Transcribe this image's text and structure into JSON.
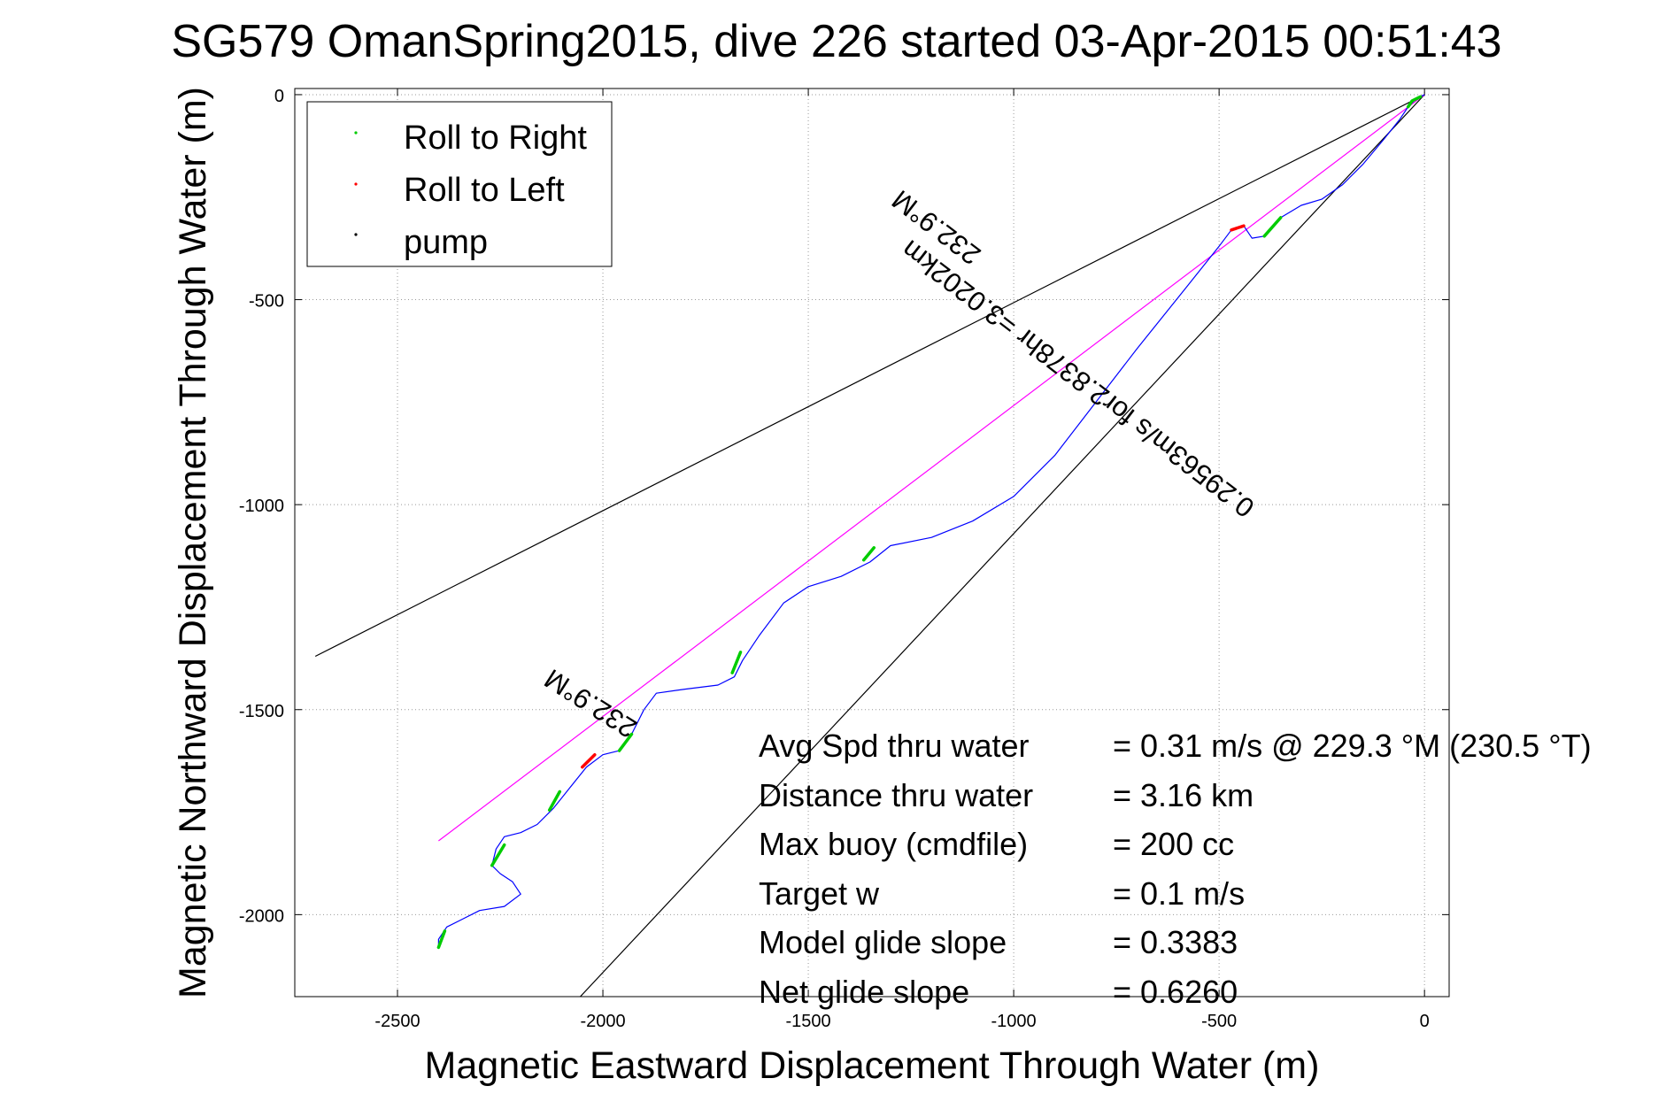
{
  "chart_data": {
    "type": "line",
    "title": "SG579 OmanSpring2015, dive 226 started 03-Apr-2015 00:51:43",
    "xlabel": "Magnetic Eastward Displacement Through Water (m)",
    "ylabel": "Magnetic Northward Displacement Through Water (m)",
    "xlim": [
      -2750,
      60
    ],
    "ylim": [
      -2200,
      15
    ],
    "xticks": [
      -2500,
      -2000,
      -1500,
      -1000,
      -500,
      0
    ],
    "yticks": [
      0,
      -500,
      -1000,
      -1500,
      -2000
    ],
    "grid": true,
    "legend_position": "top-left",
    "legend": [
      {
        "label": "Roll to Right",
        "color": "#00cc00"
      },
      {
        "label": "Roll to Left",
        "color": "#ff0000"
      },
      {
        "label": "pump",
        "color": "#000000"
      }
    ],
    "annotations": [
      {
        "text": "232.9°M",
        "x": -1175,
        "y": -306,
        "angle_deg": 217.5
      },
      {
        "text": "0.29563m/s for2.8378hr =3.0202km",
        "x": -830,
        "y": -675,
        "angle_deg": 217.5
      },
      {
        "text": "232.9°M",
        "x": -2018,
        "y": -1466,
        "angle_deg": 212.5
      }
    ],
    "series": [
      {
        "role": "track",
        "color": "#0000ff",
        "x": [
          0,
          -20,
          -40,
          -60,
          -100,
          -150,
          -200,
          -250,
          -300,
          -350,
          -390,
          -420,
          -440,
          -470,
          -500,
          -580,
          -700,
          -800,
          -900,
          -1000,
          -1100,
          -1200,
          -1300,
          -1350,
          -1420,
          -1500,
          -1560,
          -1620,
          -1660,
          -1680,
          -1720,
          -1800,
          -1870,
          -1900,
          -1930,
          -1960,
          -2000,
          -2040,
          -2080,
          -2120,
          -2160,
          -2200,
          -2240,
          -2260,
          -2270,
          -2250,
          -2220,
          -2200,
          -2240,
          -2300,
          -2340,
          -2380,
          -2400,
          -2400
        ],
        "y": [
          0,
          -10,
          -30,
          -60,
          -110,
          -170,
          -220,
          -255,
          -270,
          -300,
          -345,
          -350,
          -320,
          -330,
          -370,
          -470,
          -620,
          -750,
          -880,
          -980,
          -1040,
          -1080,
          -1100,
          -1140,
          -1175,
          -1200,
          -1240,
          -1320,
          -1380,
          -1420,
          -1440,
          -1450,
          -1460,
          -1500,
          -1560,
          -1600,
          -1610,
          -1640,
          -1690,
          -1740,
          -1780,
          -1800,
          -1810,
          -1840,
          -1880,
          -1900,
          -1920,
          -1950,
          -1980,
          -1990,
          -2010,
          -2030,
          -2060,
          -2080
        ]
      },
      {
        "role": "rhumb-line",
        "color": "#ff00ff",
        "x": [
          0,
          -2400
        ],
        "y": [
          0,
          -1820
        ]
      },
      {
        "role": "cone-upper",
        "color": "#000000",
        "x": [
          0,
          -2700
        ],
        "y": [
          0,
          -1370
        ]
      },
      {
        "role": "cone-lower",
        "color": "#000000",
        "x": [
          0,
          -2055
        ],
        "y": [
          0,
          -2200
        ]
      },
      {
        "role": "roll-to-right",
        "color": "#00cc00",
        "segments": [
          {
            "x": [
              -10,
              -30,
              -40
            ],
            "y": [
              -5,
              -15,
              -30
            ]
          },
          {
            "x": [
              -350,
              -390
            ],
            "y": [
              -300,
              -345
            ]
          },
          {
            "x": [
              -1340,
              -1365
            ],
            "y": [
              -1105,
              -1135
            ]
          },
          {
            "x": [
              -1665,
              -1685
            ],
            "y": [
              -1360,
              -1410
            ]
          },
          {
            "x": [
              -1930,
              -1960
            ],
            "y": [
              -1560,
              -1600
            ]
          },
          {
            "x": [
              -2105,
              -2130
            ],
            "y": [
              -1700,
              -1745
            ]
          },
          {
            "x": [
              -2240,
              -2270
            ],
            "y": [
              -1830,
              -1880
            ]
          },
          {
            "x": [
              -2385,
              -2400
            ],
            "y": [
              -2040,
              -2080
            ]
          }
        ]
      },
      {
        "role": "roll-to-left",
        "color": "#ff0000",
        "segments": [
          {
            "x": [
              -440,
              -470
            ],
            "y": [
              -320,
              -330
            ]
          },
          {
            "x": [
              -2020,
              -2050
            ],
            "y": [
              -1610,
              -1640
            ]
          }
        ]
      }
    ],
    "stats_panel": [
      {
        "label": "Avg Spd thru water",
        "value": "=  0.31 m/s @ 229.3 °M (230.5 °T)"
      },
      {
        "label": "Distance thru water",
        "value": "=  3.16 km"
      },
      {
        "label": "Max buoy (cmdfile)",
        "value": "= 200 cc"
      },
      {
        "label": "Target w",
        "value": "= 0.1 m/s"
      },
      {
        "label": "Model glide slope",
        "value": "= 0.3383"
      },
      {
        "label": "Net glide slope",
        "value": "= 0.6260"
      }
    ]
  }
}
